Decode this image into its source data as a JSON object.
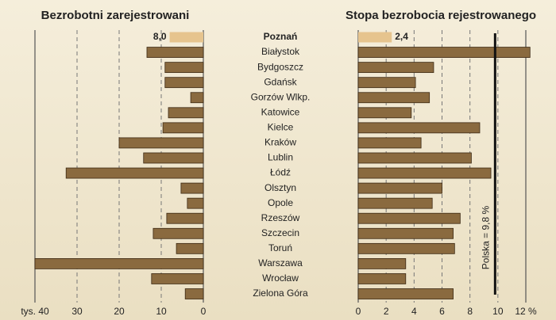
{
  "chart_data": [
    {
      "type": "bar",
      "orientation": "horizontal",
      "title": "Bezrobotni zarejestrowani",
      "categories": [
        "Poznań",
        "Białystok",
        "Bydgoszcz",
        "Gdańsk",
        "Gorzów Wlkp.",
        "Katowice",
        "Kielce",
        "Kraków",
        "Lublin",
        "Łódź",
        "Olsztyn",
        "Opole",
        "Rzeszów",
        "Szczecin",
        "Toruń",
        "Warszawa",
        "Wrocław",
        "Zielona Góra"
      ],
      "values": [
        8.0,
        13.4,
        9.1,
        9.1,
        3.0,
        8.3,
        9.6,
        20.0,
        14.2,
        32.6,
        5.3,
        3.8,
        8.7,
        11.9,
        6.4,
        40.0,
        12.3,
        4.3
      ],
      "value_labels": [
        "8,0",
        null,
        null,
        null,
        null,
        null,
        null,
        null,
        null,
        null,
        null,
        null,
        null,
        null,
        null,
        null,
        null,
        null
      ],
      "color": "#8a6a3f",
      "highlight_color": "#e6c48e",
      "highlight_index": 0,
      "xlim": [
        40,
        0
      ],
      "xticks": [
        {
          "value": 40,
          "label": "tys. 40"
        },
        30,
        20,
        10,
        0
      ],
      "grid": true
    },
    {
      "type": "bar",
      "orientation": "horizontal",
      "title": "Stopa bezrobocia rejestrowanego",
      "values": [
        2.4,
        12.3,
        5.4,
        4.1,
        5.1,
        3.8,
        8.7,
        4.5,
        8.1,
        9.5,
        6.0,
        5.3,
        7.3,
        6.8,
        6.9,
        3.4,
        3.4,
        6.8
      ],
      "value_labels": [
        "2,4",
        null,
        null,
        null,
        null,
        null,
        null,
        null,
        null,
        null,
        null,
        null,
        null,
        null,
        null,
        null,
        null,
        null
      ],
      "color": "#8a6a3f",
      "highlight_color": "#e6c48e",
      "highlight_index": 0,
      "xlim": [
        0,
        12
      ],
      "xticks": [
        0,
        2,
        4,
        6,
        8,
        10,
        {
          "value": 12,
          "label": "12 %"
        }
      ],
      "grid": true,
      "reference": {
        "value": 9.8,
        "label": "Polska = 9,8 %",
        "color": "#111111"
      }
    }
  ]
}
